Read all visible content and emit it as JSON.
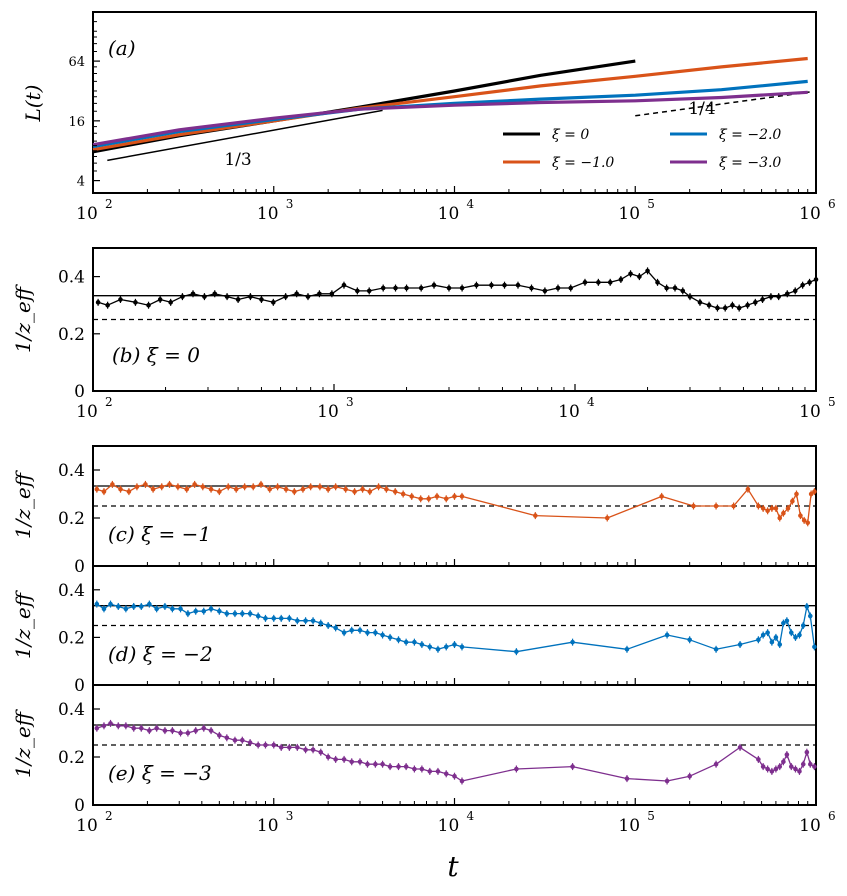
{
  "figure": {
    "xlabel": "t",
    "colors": {
      "xi0": "#000000",
      "xi1": "#d95319",
      "xi2": "#0072bd",
      "xi3": "#7e2f8e"
    }
  },
  "chart_data": [
    {
      "id": "a",
      "type": "line",
      "panel_label": "(a)",
      "ylabel": "L(t)",
      "xscale": "log",
      "yscale": "log",
      "xlim": [
        100,
        1000000
      ],
      "ylim": [
        3,
        200
      ],
      "xticks": [
        {
          "base": "10",
          "exp": "2"
        },
        {
          "base": "10",
          "exp": "3"
        },
        {
          "base": "10",
          "exp": "4"
        },
        {
          "base": "10",
          "exp": "5"
        },
        {
          "base": "10",
          "exp": "6"
        }
      ],
      "yticks": [
        "4",
        "16",
        "64"
      ],
      "slope_labels": [
        "1/3",
        "1/4"
      ],
      "guides": [
        {
          "style": "solid",
          "slope": 0.3333,
          "x": [
            120,
            4000
          ],
          "y": [
            6.4,
            20.4
          ]
        },
        {
          "style": "dashed",
          "slope": 0.25,
          "x": [
            100000,
            950000
          ],
          "y": [
            18.0,
            31.5
          ]
        }
      ],
      "legend": [
        "ξ = 0",
        "ξ = −1.0",
        "ξ = −2.0",
        "ξ = −3.0"
      ],
      "legend_position": "lower-right",
      "series": [
        {
          "name": "ξ = 0",
          "color": "#000000",
          "x": [
            100,
            300,
            1000,
            3000,
            10000,
            30000,
            100000
          ],
          "y": [
            7.8,
            11.3,
            16,
            22,
            32,
            46,
            64
          ]
        },
        {
          "name": "ξ = −1.0",
          "color": "#d95319",
          "x": [
            100,
            300,
            1000,
            3000,
            10000,
            30000,
            100000,
            300000,
            900000
          ],
          "y": [
            8.2,
            11.6,
            16,
            21.5,
            28,
            36,
            45,
            56,
            68
          ]
        },
        {
          "name": "ξ = −2.0",
          "color": "#0072bd",
          "x": [
            100,
            300,
            1000,
            3000,
            10000,
            30000,
            100000,
            300000,
            900000
          ],
          "y": [
            8.8,
            12.5,
            16.5,
            21,
            24,
            26.5,
            29,
            33,
            40
          ]
        },
        {
          "name": "ξ = −3.0",
          "color": "#7e2f8e",
          "x": [
            100,
            300,
            1000,
            3000,
            10000,
            30000,
            100000,
            300000,
            900000
          ],
          "y": [
            9.2,
            13,
            17,
            21,
            23,
            24.5,
            25.5,
            27.5,
            31
          ]
        }
      ]
    },
    {
      "id": "b",
      "type": "line",
      "panel_label": "(b) ξ = 0",
      "ylabel": "1/z_eff",
      "xscale": "log",
      "xlim": [
        100,
        100000
      ],
      "ylim": [
        0,
        0.5
      ],
      "yticks": [
        "0",
        "0.2",
        "0.4"
      ],
      "xticks": [
        {
          "base": "10",
          "exp": "2"
        },
        {
          "base": "10",
          "exp": "3"
        },
        {
          "base": "10",
          "exp": "4"
        },
        {
          "base": "10",
          "exp": "5"
        }
      ],
      "reference_lines": [
        {
          "y": 0.3333,
          "style": "solid"
        },
        {
          "y": 0.25,
          "style": "dashed"
        }
      ],
      "series": [
        {
          "name": "ξ = 0",
          "color": "#000000",
          "x": [
            105,
            115,
            130,
            150,
            170,
            190,
            210,
            235,
            260,
            290,
            320,
            360,
            400,
            450,
            500,
            560,
            630,
            700,
            780,
            870,
            980,
            1100,
            1250,
            1400,
            1600,
            1800,
            2000,
            2300,
            2600,
            3000,
            3400,
            3900,
            4500,
            5100,
            5800,
            6600,
            7500,
            8500,
            9600,
            11000,
            12500,
            14000,
            15500,
            17000,
            18500,
            20000,
            22000,
            24000,
            26000,
            28000,
            30000,
            33000,
            36000,
            39000,
            42000,
            45000,
            48000,
            52000,
            56000,
            60000,
            65000,
            70000,
            76000,
            82000,
            88000,
            94000,
            100000
          ],
          "y": [
            0.31,
            0.3,
            0.32,
            0.31,
            0.3,
            0.32,
            0.31,
            0.33,
            0.34,
            0.33,
            0.34,
            0.33,
            0.32,
            0.33,
            0.32,
            0.31,
            0.33,
            0.34,
            0.33,
            0.34,
            0.34,
            0.37,
            0.35,
            0.35,
            0.36,
            0.36,
            0.36,
            0.36,
            0.37,
            0.36,
            0.36,
            0.37,
            0.37,
            0.37,
            0.37,
            0.36,
            0.35,
            0.36,
            0.36,
            0.38,
            0.38,
            0.38,
            0.39,
            0.41,
            0.4,
            0.42,
            0.38,
            0.36,
            0.36,
            0.35,
            0.33,
            0.31,
            0.3,
            0.29,
            0.29,
            0.3,
            0.29,
            0.3,
            0.31,
            0.32,
            0.33,
            0.33,
            0.34,
            0.35,
            0.37,
            0.38,
            0.39
          ]
        }
      ]
    },
    {
      "id": "c",
      "type": "line",
      "panel_label": "(c) ξ = −1",
      "ylabel": "1/z_eff",
      "xscale": "log",
      "xlim": [
        100,
        1000000
      ],
      "ylim": [
        0,
        0.5
      ],
      "yticks": [
        "0",
        "0.2",
        "0.4"
      ],
      "reference_lines": [
        {
          "y": 0.3333,
          "style": "solid"
        },
        {
          "y": 0.25,
          "style": "dashed"
        }
      ],
      "series": [
        {
          "name": "ξ = −1",
          "color": "#d95319",
          "x": [
            105,
            115,
            128,
            142,
            158,
            175,
            195,
            215,
            240,
            265,
            295,
            330,
            365,
            405,
            450,
            500,
            560,
            620,
            690,
            770,
            850,
            950,
            1050,
            1170,
            1300,
            1450,
            1600,
            1800,
            2000,
            2200,
            2500,
            2800,
            3100,
            3400,
            3800,
            4200,
            4700,
            5200,
            5800,
            6500,
            7200,
            8000,
            9000,
            10000,
            11000,
            28000,
            70000,
            140000,
            210000,
            280000,
            350000,
            420000,
            480000,
            510000,
            540000,
            570000,
            600000,
            630000,
            660000,
            700000,
            740000,
            780000,
            820000,
            860000,
            900000,
            940000,
            980000
          ],
          "y": [
            0.32,
            0.31,
            0.34,
            0.32,
            0.31,
            0.33,
            0.34,
            0.32,
            0.33,
            0.34,
            0.33,
            0.32,
            0.34,
            0.33,
            0.32,
            0.31,
            0.33,
            0.32,
            0.33,
            0.33,
            0.34,
            0.32,
            0.33,
            0.32,
            0.31,
            0.32,
            0.33,
            0.33,
            0.32,
            0.33,
            0.32,
            0.31,
            0.32,
            0.31,
            0.33,
            0.32,
            0.31,
            0.3,
            0.29,
            0.28,
            0.28,
            0.29,
            0.28,
            0.29,
            0.29,
            0.21,
            0.2,
            0.29,
            0.25,
            0.25,
            0.25,
            0.32,
            0.25,
            0.24,
            0.23,
            0.24,
            0.24,
            0.2,
            0.22,
            0.24,
            0.27,
            0.3,
            0.21,
            0.19,
            0.18,
            0.3,
            0.31
          ]
        }
      ]
    },
    {
      "id": "d",
      "type": "line",
      "panel_label": "(d) ξ = −2",
      "ylabel": "1/z_eff",
      "xscale": "log",
      "xlim": [
        100,
        1000000
      ],
      "ylim": [
        0,
        0.5
      ],
      "yticks": [
        "0",
        "0.2",
        "0.4"
      ],
      "reference_lines": [
        {
          "y": 0.3333,
          "style": "solid"
        },
        {
          "y": 0.25,
          "style": "dashed"
        }
      ],
      "series": [
        {
          "name": "ξ = −2",
          "color": "#0072bd",
          "x": [
            105,
            115,
            125,
            138,
            152,
            168,
            185,
            205,
            225,
            250,
            275,
            305,
            335,
            370,
            410,
            450,
            500,
            550,
            610,
            670,
            740,
            820,
            900,
            1000,
            1100,
            1220,
            1350,
            1500,
            1650,
            1820,
            2000,
            2200,
            2450,
            2700,
            3000,
            3300,
            3650,
            4000,
            4400,
            4900,
            5400,
            6000,
            6600,
            7300,
            8100,
            9000,
            10000,
            11000,
            22000,
            45000,
            90000,
            150000,
            200000,
            280000,
            380000,
            480000,
            510000,
            540000,
            570000,
            600000,
            630000,
            660000,
            690000,
            730000,
            770000,
            810000,
            850000,
            890000,
            930000,
            980000
          ],
          "y": [
            0.34,
            0.32,
            0.34,
            0.33,
            0.32,
            0.33,
            0.33,
            0.34,
            0.32,
            0.33,
            0.32,
            0.32,
            0.3,
            0.31,
            0.31,
            0.32,
            0.31,
            0.3,
            0.3,
            0.3,
            0.3,
            0.29,
            0.28,
            0.28,
            0.28,
            0.28,
            0.27,
            0.27,
            0.27,
            0.26,
            0.25,
            0.24,
            0.22,
            0.23,
            0.23,
            0.22,
            0.22,
            0.21,
            0.2,
            0.19,
            0.18,
            0.18,
            0.17,
            0.16,
            0.15,
            0.16,
            0.17,
            0.16,
            0.14,
            0.18,
            0.15,
            0.21,
            0.19,
            0.15,
            0.17,
            0.19,
            0.21,
            0.22,
            0.18,
            0.2,
            0.17,
            0.26,
            0.27,
            0.22,
            0.2,
            0.21,
            0.25,
            0.33,
            0.29,
            0.16
          ]
        }
      ]
    },
    {
      "id": "e",
      "type": "line",
      "panel_label": "(e) ξ = −3",
      "ylabel": "1/z_eff",
      "xscale": "log",
      "xlim": [
        100,
        1000000
      ],
      "ylim": [
        0,
        0.5
      ],
      "yticks": [
        "0",
        "0.2",
        "0.4"
      ],
      "xticks": [
        {
          "base": "10",
          "exp": "2"
        },
        {
          "base": "10",
          "exp": "3"
        },
        {
          "base": "10",
          "exp": "4"
        },
        {
          "base": "10",
          "exp": "5"
        },
        {
          "base": "10",
          "exp": "6"
        }
      ],
      "reference_lines": [
        {
          "y": 0.3333,
          "style": "solid"
        },
        {
          "y": 0.25,
          "style": "dashed"
        }
      ],
      "series": [
        {
          "name": "ξ = −3",
          "color": "#7e2f8e",
          "x": [
            105,
            115,
            125,
            138,
            152,
            168,
            185,
            205,
            225,
            250,
            275,
            305,
            335,
            370,
            410,
            450,
            500,
            550,
            610,
            670,
            740,
            820,
            900,
            1000,
            1100,
            1220,
            1350,
            1500,
            1650,
            1820,
            2000,
            2200,
            2450,
            2700,
            3000,
            3300,
            3650,
            4000,
            4400,
            4900,
            5400,
            6000,
            6600,
            7300,
            8100,
            9000,
            10000,
            11000,
            22000,
            45000,
            90000,
            150000,
            200000,
            280000,
            380000,
            480000,
            510000,
            540000,
            570000,
            600000,
            630000,
            660000,
            690000,
            730000,
            770000,
            810000,
            850000,
            890000,
            930000,
            980000
          ],
          "y": [
            0.32,
            0.33,
            0.34,
            0.33,
            0.33,
            0.32,
            0.32,
            0.31,
            0.32,
            0.31,
            0.31,
            0.3,
            0.3,
            0.31,
            0.32,
            0.31,
            0.29,
            0.28,
            0.27,
            0.27,
            0.26,
            0.25,
            0.25,
            0.25,
            0.24,
            0.24,
            0.24,
            0.23,
            0.23,
            0.22,
            0.2,
            0.19,
            0.19,
            0.18,
            0.18,
            0.17,
            0.17,
            0.17,
            0.16,
            0.16,
            0.16,
            0.15,
            0.15,
            0.14,
            0.14,
            0.13,
            0.12,
            0.1,
            0.15,
            0.16,
            0.11,
            0.1,
            0.12,
            0.17,
            0.24,
            0.19,
            0.16,
            0.15,
            0.14,
            0.15,
            0.16,
            0.18,
            0.21,
            0.16,
            0.15,
            0.14,
            0.17,
            0.22,
            0.17,
            0.16
          ]
        }
      ]
    }
  ]
}
